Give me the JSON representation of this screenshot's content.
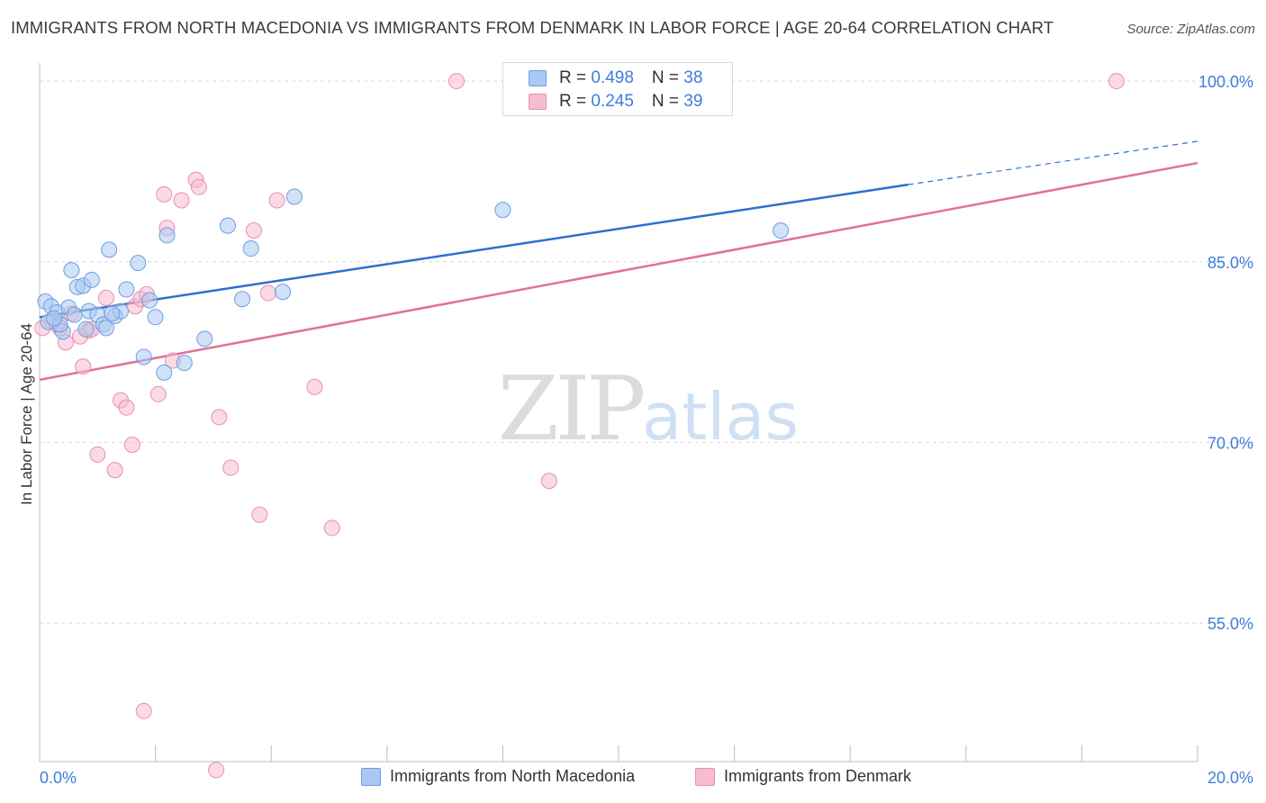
{
  "title": "IMMIGRANTS FROM NORTH MACEDONIA VS IMMIGRANTS FROM DENMARK IN LABOR FORCE | AGE 20-64 CORRELATION CHART",
  "source": "Source: ZipAtlas.com",
  "watermark": {
    "zip": "ZIP",
    "atlas": "atlas"
  },
  "colors": {
    "blue_fill": "#a9c8f3",
    "blue_stroke": "#6d9fe0",
    "blue_line": "#2d6fd1",
    "pink_fill": "#f7bcd0",
    "pink_stroke": "#e790ae",
    "pink_line": "#e0709a",
    "tick_text": "#3d7ddb",
    "grid": "#d9d9d9"
  },
  "legend": {
    "rows": [
      {
        "r_label": "R = ",
        "r_value": "0.498",
        "n_label": "N = ",
        "n_value": "38"
      },
      {
        "r_label": "R = ",
        "r_value": "0.245",
        "n_label": "N = ",
        "n_value": "39"
      }
    ]
  },
  "chart_data": {
    "type": "scatter",
    "title": "IMMIGRANTS FROM NORTH MACEDONIA VS IMMIGRANTS FROM DENMARK IN LABOR FORCE | AGE 20-64 CORRELATION CHART",
    "xlabel": "",
    "ylabel": "In Labor Force | Age 20-64",
    "xlim": [
      0,
      20
    ],
    "ylim": [
      43.5,
      101.5
    ],
    "x_tick_labels": [
      {
        "value": 0,
        "label": "0.0%"
      },
      {
        "value": 20,
        "label": "20.0%"
      }
    ],
    "y_tick_labels": [
      {
        "value": 100,
        "label": "100.0%"
      },
      {
        "value": 85,
        "label": "85.0%"
      },
      {
        "value": 70,
        "label": "70.0%"
      },
      {
        "value": 55,
        "label": "55.0%"
      }
    ],
    "x_minor_ticks": [
      2,
      4,
      6,
      8,
      10,
      12,
      14,
      16,
      18,
      20
    ],
    "grid": true,
    "series": [
      {
        "name": "Immigrants from North Macedonia",
        "color": "blue",
        "points": [
          [
            0.1,
            81.7
          ],
          [
            0.2,
            81.3
          ],
          [
            0.3,
            80.8
          ],
          [
            0.4,
            79.2
          ],
          [
            0.5,
            81.2
          ],
          [
            0.6,
            80.6
          ],
          [
            0.55,
            84.3
          ],
          [
            0.65,
            82.9
          ],
          [
            0.75,
            83.0
          ],
          [
            0.85,
            80.9
          ],
          [
            0.9,
            83.5
          ],
          [
            1.0,
            80.6
          ],
          [
            1.1,
            79.8
          ],
          [
            1.15,
            79.5
          ],
          [
            1.2,
            86.0
          ],
          [
            1.3,
            80.5
          ],
          [
            1.4,
            80.9
          ],
          [
            1.5,
            82.7
          ],
          [
            1.7,
            84.9
          ],
          [
            1.8,
            77.1
          ],
          [
            1.9,
            81.8
          ],
          [
            2.0,
            80.4
          ],
          [
            2.15,
            75.8
          ],
          [
            2.2,
            87.2
          ],
          [
            2.85,
            78.6
          ],
          [
            3.25,
            88.0
          ],
          [
            3.5,
            81.9
          ],
          [
            3.65,
            86.1
          ],
          [
            4.2,
            82.5
          ],
          [
            4.4,
            90.4
          ],
          [
            2.5,
            76.6
          ],
          [
            8.0,
            89.3
          ],
          [
            12.8,
            87.6
          ],
          [
            0.15,
            80.0
          ],
          [
            0.8,
            79.4
          ],
          [
            1.25,
            80.7
          ],
          [
            0.35,
            79.8
          ],
          [
            0.25,
            80.3
          ]
        ]
      },
      {
        "name": "Immigrants from Denmark",
        "color": "pink",
        "points": [
          [
            0.05,
            79.5
          ],
          [
            0.2,
            80.1
          ],
          [
            0.35,
            79.5
          ],
          [
            0.45,
            78.3
          ],
          [
            0.55,
            80.7
          ],
          [
            0.7,
            78.8
          ],
          [
            0.75,
            76.3
          ],
          [
            0.85,
            79.3
          ],
          [
            0.9,
            79.4
          ],
          [
            1.0,
            69.0
          ],
          [
            1.15,
            82.0
          ],
          [
            1.3,
            67.7
          ],
          [
            1.4,
            73.5
          ],
          [
            1.5,
            72.9
          ],
          [
            1.6,
            69.8
          ],
          [
            1.65,
            81.3
          ],
          [
            1.75,
            81.9
          ],
          [
            1.85,
            82.3
          ],
          [
            2.05,
            74.0
          ],
          [
            2.15,
            90.6
          ],
          [
            2.2,
            87.8
          ],
          [
            2.3,
            76.8
          ],
          [
            2.45,
            90.1
          ],
          [
            2.7,
            91.8
          ],
          [
            2.75,
            91.2
          ],
          [
            3.1,
            72.1
          ],
          [
            3.3,
            67.9
          ],
          [
            3.7,
            87.6
          ],
          [
            3.8,
            64.0
          ],
          [
            3.95,
            82.4
          ],
          [
            4.1,
            90.1
          ],
          [
            4.75,
            74.6
          ],
          [
            5.05,
            62.9
          ],
          [
            7.2,
            100.0
          ],
          [
            8.8,
            66.8
          ],
          [
            18.6,
            100.0
          ],
          [
            1.8,
            47.7
          ],
          [
            3.05,
            42.8
          ],
          [
            0.3,
            79.8
          ]
        ]
      }
    ],
    "trend_lines": [
      {
        "series": "Immigrants from North Macedonia",
        "x0": 0,
        "y0": 80.4,
        "x1": 15.0,
        "y1": 91.4,
        "dash_to_x": 20,
        "dash_to_y": 95.0
      },
      {
        "series": "Immigrants from Denmark",
        "x0": 0,
        "y0": 75.2,
        "x1": 20,
        "y1": 93.2
      }
    ]
  }
}
